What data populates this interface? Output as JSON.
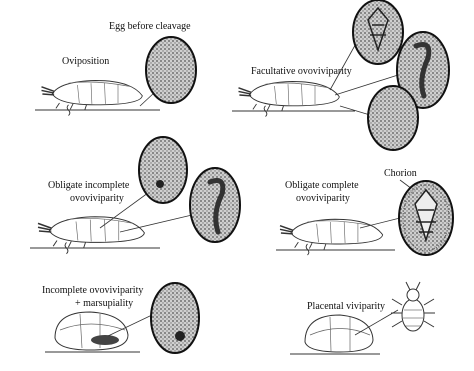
{
  "labels": {
    "egg_before_cleavage": "Egg before cleavage",
    "oviposition": "Oviposition",
    "facultative": "Facultative ovoviviparity",
    "obligate_incomplete": [
      "Obligate incomplete",
      "ovoviviparity"
    ],
    "obligate_complete": [
      "Obligate complete",
      "ovoviviparity"
    ],
    "chorion": "Chorion",
    "incomplete_marsupiality": [
      "Incomplete ovoviviparity",
      "+ marsupiality"
    ],
    "placental": "Placental viviparity"
  }
}
